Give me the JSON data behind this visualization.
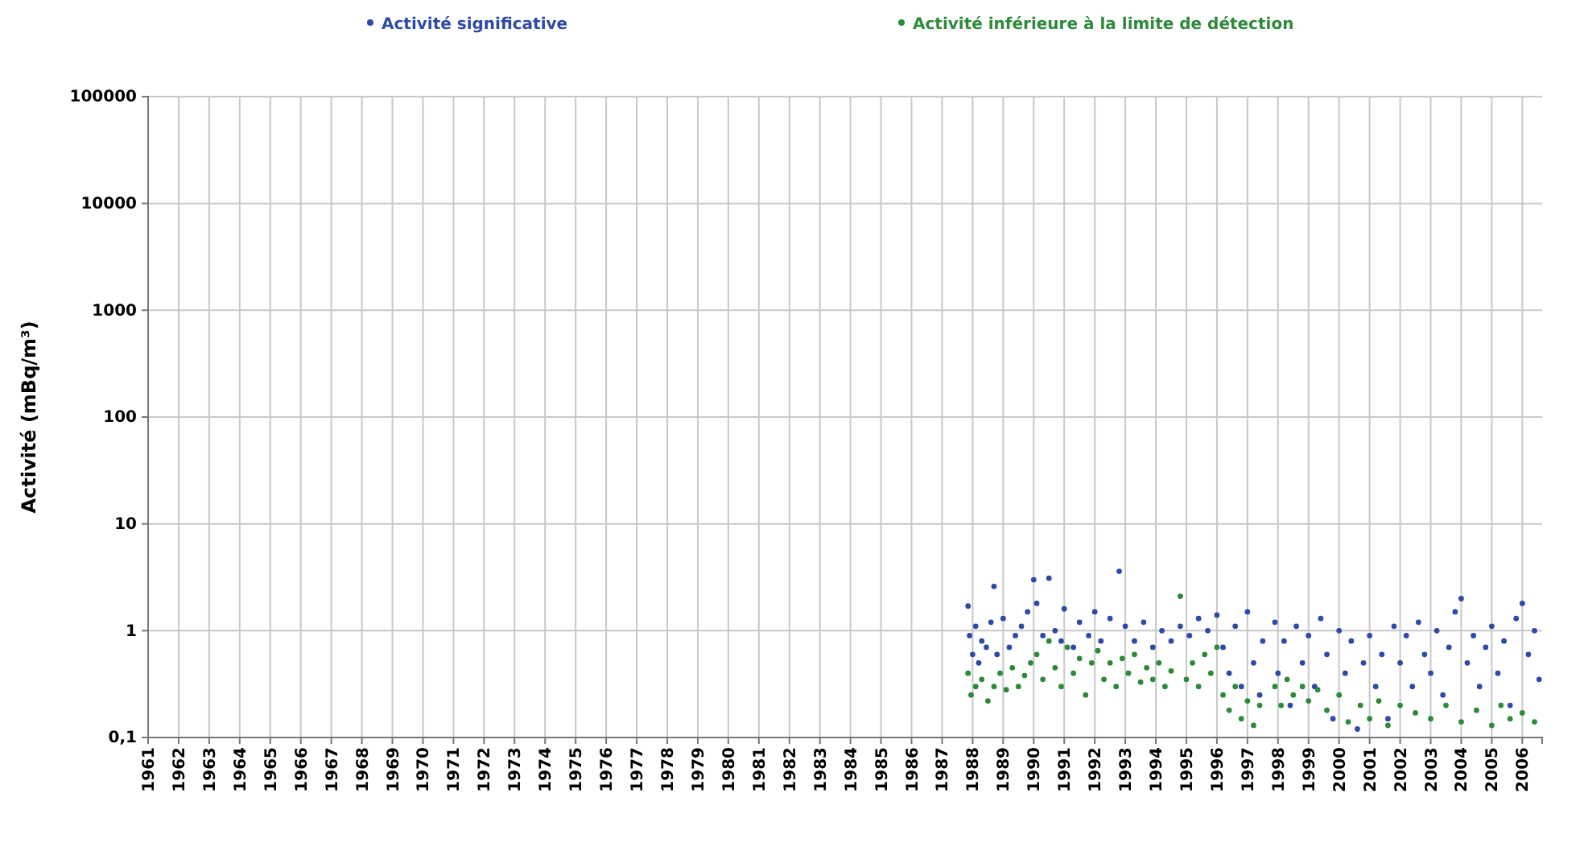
{
  "chart_data": {
    "type": "scatter",
    "ylabel": "Activité (mBq/m³)",
    "log": true,
    "grid": true,
    "legend": "top",
    "marker": "circle",
    "xlim": [
      1961,
      2006.65
    ],
    "ylim": [
      0.1,
      100000
    ],
    "xticks": [
      1961,
      1962,
      1963,
      1964,
      1965,
      1966,
      1967,
      1968,
      1969,
      1970,
      1971,
      1972,
      1973,
      1974,
      1975,
      1976,
      1977,
      1978,
      1979,
      1980,
      1981,
      1982,
      1983,
      1984,
      1985,
      1986,
      1987,
      1988,
      1989,
      1990,
      1991,
      1992,
      1993,
      1994,
      1995,
      1996,
      1997,
      1998,
      1999,
      2000,
      2001,
      2002,
      2003,
      2004,
      2005,
      2006
    ],
    "yticks": [
      {
        "value": 0.1,
        "label": "0,1"
      },
      1,
      10,
      100,
      1000,
      10000,
      100000
    ],
    "series": [
      {
        "name": "Activité significative",
        "color": "#2e4aa8",
        "x": [
          1987.85,
          1987.9,
          1988.0,
          1988.1,
          1988.2,
          1988.3,
          1988.45,
          1988.6,
          1988.7,
          1988.8,
          1989.0,
          1989.2,
          1989.4,
          1989.6,
          1989.8,
          1990.0,
          1990.1,
          1990.3,
          1990.5,
          1990.7,
          1990.9,
          1991.0,
          1991.3,
          1991.5,
          1991.8,
          1992.0,
          1992.2,
          1992.5,
          1992.8,
          1993.0,
          1993.3,
          1993.6,
          1993.9,
          1994.2,
          1994.5,
          1994.8,
          1995.1,
          1995.4,
          1995.7,
          1996.0,
          1996.2,
          1996.4,
          1996.6,
          1996.8,
          1997.0,
          1997.2,
          1997.4,
          1997.5,
          1997.9,
          1998.0,
          1998.2,
          1998.4,
          1998.6,
          1998.8,
          1999.0,
          1999.2,
          1999.4,
          1999.6,
          1999.8,
          2000.0,
          2000.2,
          2000.4,
          2000.6,
          2000.8,
          2001.0,
          2001.2,
          2001.4,
          2001.6,
          2001.8,
          2002.0,
          2002.2,
          2002.4,
          2002.6,
          2002.8,
          2003.0,
          2003.2,
          2003.4,
          2003.6,
          2003.8,
          2004.0,
          2004.2,
          2004.4,
          2004.6,
          2004.8,
          2005.0,
          2005.2,
          2005.4,
          2005.6,
          2005.8,
          2006.0,
          2006.2,
          2006.4,
          2006.55
        ],
        "values": [
          1.7,
          0.9,
          0.6,
          1.1,
          0.5,
          0.8,
          0.7,
          1.2,
          2.6,
          0.6,
          1.3,
          0.7,
          0.9,
          1.1,
          1.5,
          3.0,
          1.8,
          0.9,
          3.1,
          1.0,
          0.8,
          1.6,
          0.7,
          1.2,
          0.9,
          1.5,
          0.8,
          1.3,
          3.6,
          1.1,
          0.8,
          1.2,
          0.7,
          1.0,
          0.8,
          1.1,
          0.9,
          1.3,
          1.0,
          1.4,
          0.7,
          0.4,
          1.1,
          0.3,
          1.5,
          0.5,
          0.25,
          0.8,
          1.2,
          0.4,
          0.8,
          0.2,
          1.1,
          0.5,
          0.9,
          0.3,
          1.3,
          0.6,
          0.15,
          1.0,
          0.4,
          0.8,
          0.12,
          0.5,
          0.9,
          0.3,
          0.6,
          0.15,
          1.1,
          0.5,
          0.9,
          0.3,
          1.2,
          0.6,
          0.4,
          1.0,
          0.25,
          0.7,
          1.5,
          2.0,
          0.5,
          0.9,
          0.3,
          0.7,
          1.1,
          0.4,
          0.8,
          0.2,
          1.3,
          1.8,
          0.6,
          1.0,
          0.35
        ]
      },
      {
        "name": "Activité inférieure à la limite de détection",
        "color": "#2e8a3a",
        "x": [
          1987.85,
          1987.95,
          1988.1,
          1988.3,
          1988.5,
          1988.7,
          1988.9,
          1989.1,
          1989.3,
          1989.5,
          1989.7,
          1989.9,
          1990.1,
          1990.3,
          1990.5,
          1990.7,
          1990.9,
          1991.1,
          1991.3,
          1991.5,
          1991.7,
          1991.9,
          1992.1,
          1992.3,
          1992.5,
          1992.7,
          1992.9,
          1993.1,
          1993.3,
          1993.5,
          1993.7,
          1993.9,
          1994.1,
          1994.3,
          1994.5,
          1994.8,
          1995.0,
          1995.2,
          1995.4,
          1995.6,
          1995.8,
          1996.0,
          1996.2,
          1996.4,
          1996.6,
          1996.8,
          1997.0,
          1997.2,
          1997.4,
          1997.9,
          1998.1,
          1998.3,
          1998.5,
          1998.8,
          1999.0,
          1999.3,
          1999.6,
          2000.0,
          2000.3,
          2000.7,
          2001.0,
          2001.3,
          2001.6,
          2002.0,
          2002.5,
          2003.0,
          2003.5,
          2004.0,
          2004.5,
          2005.0,
          2005.3,
          2005.6,
          2006.0,
          2006.4
        ],
        "values": [
          0.4,
          0.25,
          0.3,
          0.35,
          0.22,
          0.3,
          0.4,
          0.28,
          0.45,
          0.3,
          0.38,
          0.5,
          0.6,
          0.35,
          0.8,
          0.45,
          0.3,
          0.7,
          0.4,
          0.55,
          0.25,
          0.5,
          0.65,
          0.35,
          0.5,
          0.3,
          0.55,
          0.4,
          0.6,
          0.33,
          0.45,
          0.35,
          0.5,
          0.3,
          0.42,
          2.1,
          0.35,
          0.5,
          0.3,
          0.6,
          0.4,
          0.7,
          0.25,
          0.18,
          0.3,
          0.15,
          0.22,
          0.13,
          0.2,
          0.3,
          0.2,
          0.35,
          0.25,
          0.3,
          0.22,
          0.28,
          0.18,
          0.25,
          0.14,
          0.2,
          0.15,
          0.22,
          0.13,
          0.2,
          0.17,
          0.15,
          0.2,
          0.14,
          0.18,
          0.13,
          0.2,
          0.15,
          0.17,
          0.14
        ]
      }
    ]
  }
}
